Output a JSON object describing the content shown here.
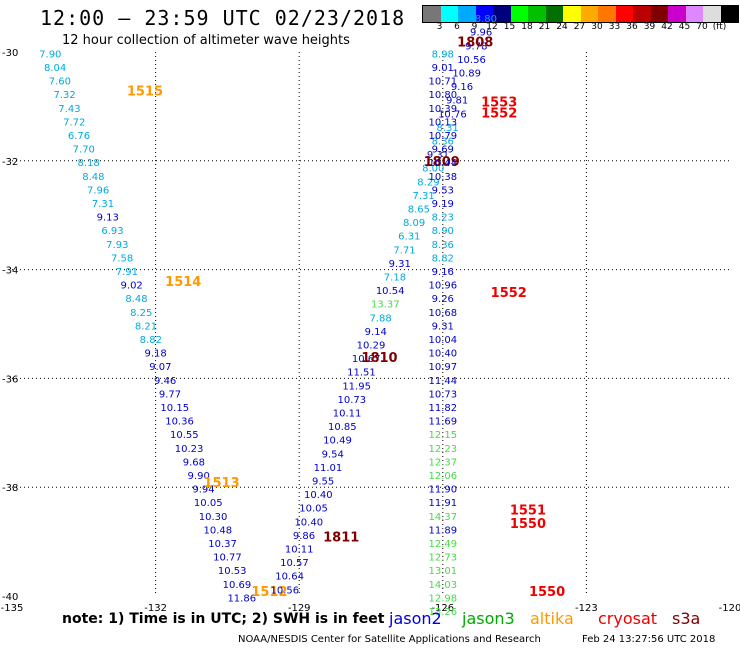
{
  "header": {
    "title": "12:00 – 23:59 UTC 02/23/2018",
    "subtitle": "12 hour collection of altimeter wave heights"
  },
  "legend": {
    "colors": [
      "#777777",
      "#00ffff",
      "#00aaff",
      "#0000ff",
      "#00007f",
      "#00ff00",
      "#00c000",
      "#007000",
      "#ffff00",
      "#ffaa00",
      "#ff7700",
      "#ff0000",
      "#bb0000",
      "#800000",
      "#cc00cc",
      "#dd88ff",
      "#dddddd",
      "#000000"
    ],
    "labels": [
      "3",
      "6",
      "9",
      "12",
      "15",
      "18",
      "21",
      "24",
      "27",
      "30",
      "33",
      "36",
      "39",
      "42",
      "45",
      "70",
      "(ft)"
    ]
  },
  "footer": {
    "note": "note: 1) Time is in UTC; 2) SWH is in feet",
    "satellites": [
      {
        "name": "jason2",
        "color": "#0000dd"
      },
      {
        "name": "jason3",
        "color": "#00aa00"
      },
      {
        "name": "altika",
        "color": "#ff9900"
      },
      {
        "name": "cryosat",
        "color": "#ee0000"
      },
      {
        "name": "s3a",
        "color": "#800000"
      }
    ],
    "credit": "NOAA/NESDIS Center for Satellite Applications and Research",
    "timestamp": "Feb 24 13:27:56 UTC 2018"
  },
  "chart_data": {
    "type": "scatter",
    "title": "12:00 – 23:59 UTC 02/23/2018",
    "subtitle": "12 hour collection of altimeter wave heights",
    "xlim": [
      -135,
      -120
    ],
    "ylim": [
      -40,
      -30
    ],
    "x_ticks": [
      "-135",
      "-132",
      "-129",
      "-126",
      "-123",
      "-120"
    ],
    "y_ticks": [
      "-30",
      "-32",
      "-34",
      "-36",
      "-38",
      "-40"
    ],
    "grid": true,
    "tracks": [
      {
        "name": "altika-west",
        "color_key": "altika",
        "time_labels": [
          {
            "text": "1515",
            "lon": -132.6,
            "lat": -30.8
          },
          {
            "text": "1514",
            "lon": -131.8,
            "lat": -34.3
          },
          {
            "text": "1513",
            "lon": -131.0,
            "lat": -38.0
          },
          {
            "text": "1512",
            "lon": -130.0,
            "lat": -40.0
          }
        ],
        "points": [
          {
            "v": "7.90",
            "lon": -134.2,
            "lat": -30.1
          },
          {
            "v": "8.04",
            "lon": -134.1,
            "lat": -30.35
          },
          {
            "v": "7.60",
            "lon": -134.0,
            "lat": -30.6
          },
          {
            "v": "7.32",
            "lon": -133.9,
            "lat": -30.85
          },
          {
            "v": "7.43",
            "lon": -133.8,
            "lat": -31.1
          },
          {
            "v": "7.72",
            "lon": -133.7,
            "lat": -31.35
          },
          {
            "v": "6.76",
            "lon": -133.6,
            "lat": -31.6
          },
          {
            "v": "7.70",
            "lon": -133.5,
            "lat": -31.85
          },
          {
            "v": "8.18",
            "lon": -133.4,
            "lat": -32.1
          },
          {
            "v": "8.48",
            "lon": -133.3,
            "lat": -32.35
          },
          {
            "v": "7.96",
            "lon": -133.2,
            "lat": -32.6
          },
          {
            "v": "7.31",
            "lon": -133.1,
            "lat": -32.85
          },
          {
            "v": "9.13",
            "lon": -133.0,
            "lat": -33.1
          },
          {
            "v": "6.93",
            "lon": -132.9,
            "lat": -33.35
          },
          {
            "v": "7.93",
            "lon": -132.8,
            "lat": -33.6
          },
          {
            "v": "7.58",
            "lon": -132.7,
            "lat": -33.85
          },
          {
            "v": "7.91",
            "lon": -132.6,
            "lat": -34.1
          },
          {
            "v": "9.02",
            "lon": -132.5,
            "lat": -34.35
          },
          {
            "v": "8.48",
            "lon": -132.4,
            "lat": -34.6
          },
          {
            "v": "8.25",
            "lon": -132.3,
            "lat": -34.85
          },
          {
            "v": "8.21",
            "lon": -132.2,
            "lat": -35.1
          },
          {
            "v": "8.82",
            "lon": -132.1,
            "lat": -35.35
          },
          {
            "v": "9.18",
            "lon": -132.0,
            "lat": -35.6
          },
          {
            "v": "9.07",
            "lon": -131.9,
            "lat": -35.85
          },
          {
            "v": "9.46",
            "lon": -131.8,
            "lat": -36.1
          },
          {
            "v": "9.77",
            "lon": -131.7,
            "lat": -36.35
          },
          {
            "v": "10.15",
            "lon": -131.6,
            "lat": -36.6
          },
          {
            "v": "10.36",
            "lon": -131.5,
            "lat": -36.85
          },
          {
            "v": "10.55",
            "lon": -131.4,
            "lat": -37.1
          },
          {
            "v": "10.23",
            "lon": -131.3,
            "lat": -37.35
          },
          {
            "v": "9.68",
            "lon": -131.2,
            "lat": -37.6
          },
          {
            "v": "9.90",
            "lon": -131.1,
            "lat": -37.85
          },
          {
            "v": "9.94",
            "lon": -131.0,
            "lat": -38.1
          },
          {
            "v": "10.05",
            "lon": -130.9,
            "lat": -38.35
          },
          {
            "v": "10.30",
            "lon": -130.8,
            "lat": -38.6
          },
          {
            "v": "10.48",
            "lon": -130.7,
            "lat": -38.85
          },
          {
            "v": "10.37",
            "lon": -130.6,
            "lat": -39.1
          },
          {
            "v": "10.77",
            "lon": -130.5,
            "lat": -39.35
          },
          {
            "v": "10.53",
            "lon": -130.4,
            "lat": -39.6
          },
          {
            "v": "10.69",
            "lon": -130.3,
            "lat": -39.85
          },
          {
            "v": "11.86",
            "lon": -130.2,
            "lat": -40.1
          }
        ]
      },
      {
        "name": "s3a-middle",
        "color_key": "s3a",
        "time_labels": [
          {
            "text": "1811",
            "lon": -128.5,
            "lat": -39.0
          },
          {
            "text": "1810",
            "lon": -127.7,
            "lat": -35.7
          },
          {
            "text": "1809",
            "lon": -126.4,
            "lat": -32.1
          },
          {
            "text": "1808",
            "lon": -125.7,
            "lat": -29.9
          }
        ],
        "points": [
          {
            "v": "10.56",
            "lon": -129.3,
            "lat": -39.95
          },
          {
            "v": "10.64",
            "lon": -129.2,
            "lat": -39.7
          },
          {
            "v": "10.57",
            "lon": -129.1,
            "lat": -39.45
          },
          {
            "v": "10.11",
            "lon": -129.0,
            "lat": -39.2
          },
          {
            "v": "9.86",
            "lon": -128.9,
            "lat": -38.95
          },
          {
            "v": "10.40",
            "lon": -128.8,
            "lat": -38.7
          },
          {
            "v": "10.05",
            "lon": -128.7,
            "lat": -38.45
          },
          {
            "v": "10.40",
            "lon": -128.6,
            "lat": -38.2
          },
          {
            "v": "9.55",
            "lon": -128.5,
            "lat": -37.95
          },
          {
            "v": "11.01",
            "lon": -128.4,
            "lat": -37.7
          },
          {
            "v": "9.54",
            "lon": -128.3,
            "lat": -37.45
          },
          {
            "v": "10.49",
            "lon": -128.2,
            "lat": -37.2
          },
          {
            "v": "10.85",
            "lon": -128.1,
            "lat": -36.95
          },
          {
            "v": "10.11",
            "lon": -128.0,
            "lat": -36.7
          },
          {
            "v": "10.73",
            "lon": -127.9,
            "lat": -36.45
          },
          {
            "v": "11.95",
            "lon": -127.8,
            "lat": -36.2
          },
          {
            "v": "11.51",
            "lon": -127.7,
            "lat": -35.95
          },
          {
            "v": "10.67",
            "lon": -127.6,
            "lat": -35.7
          },
          {
            "v": "10.29",
            "lon": -127.5,
            "lat": -35.45
          },
          {
            "v": "9.14",
            "lon": -127.4,
            "lat": -35.2
          },
          {
            "v": "7.88",
            "lon": -127.3,
            "lat": -34.95
          },
          {
            "v": "13.37",
            "lon": -127.2,
            "lat": -34.7
          },
          {
            "v": "10.54",
            "lon": -127.1,
            "lat": -34.45
          },
          {
            "v": "7.18",
            "lon": -127.0,
            "lat": -34.2
          },
          {
            "v": "9.31",
            "lon": -126.9,
            "lat": -33.95
          },
          {
            "v": "7.71",
            "lon": -126.8,
            "lat": -33.7
          },
          {
            "v": "6.31",
            "lon": -126.7,
            "lat": -33.45
          },
          {
            "v": "8.09",
            "lon": -126.6,
            "lat": -33.2
          },
          {
            "v": "8.65",
            "lon": -126.5,
            "lat": -32.95
          },
          {
            "v": "7.31",
            "lon": -126.4,
            "lat": -32.7
          },
          {
            "v": "8.29",
            "lon": -126.3,
            "lat": -32.45
          },
          {
            "v": "8.00",
            "lon": -126.2,
            "lat": -32.2
          },
          {
            "v": "9.31",
            "lon": -126.1,
            "lat": -31.95
          },
          {
            "v": "8.36",
            "lon": -126.0,
            "lat": -31.7
          },
          {
            "v": "8.31",
            "lon": -125.9,
            "lat": -31.45
          },
          {
            "v": "10.76",
            "lon": -125.8,
            "lat": -31.2
          },
          {
            "v": "9.81",
            "lon": -125.7,
            "lat": -30.95
          },
          {
            "v": "9.16",
            "lon": -125.6,
            "lat": -30.7
          },
          {
            "v": "10.89",
            "lon": -125.5,
            "lat": -30.45
          },
          {
            "v": "10.56",
            "lon": -125.4,
            "lat": -30.2
          },
          {
            "v": "9.78",
            "lon": -125.3,
            "lat": -29.95
          },
          {
            "v": "9.96",
            "lon": -125.2,
            "lat": -29.7
          },
          {
            "v": "8.80",
            "lon": -125.1,
            "lat": -29.45
          }
        ]
      },
      {
        "name": "cryosat-east",
        "color_key": "cryosat",
        "time_labels": [
          {
            "text": "1553",
            "lon": -125.2,
            "lat": -31.0
          },
          {
            "text": "1552",
            "lon": -125.2,
            "lat": -31.2
          },
          {
            "text": "1552",
            "lon": -125.0,
            "lat": -34.5
          },
          {
            "text": "1551",
            "lon": -124.6,
            "lat": -38.5
          },
          {
            "text": "1550",
            "lon": -124.6,
            "lat": -38.75
          },
          {
            "text": "1550",
            "lon": -124.2,
            "lat": -40.0
          }
        ],
        "points": [
          {
            "v": "8.98",
            "lon": -126.0,
            "lat": -30.1
          },
          {
            "v": "9.01",
            "lon": -126.0,
            "lat": -30.35
          },
          {
            "v": "10.71",
            "lon": -126.0,
            "lat": -30.6
          },
          {
            "v": "10.80",
            "lon": -126.0,
            "lat": -30.85
          },
          {
            "v": "10.39",
            "lon": -126.0,
            "lat": -31.1
          },
          {
            "v": "10.13",
            "lon": -126.0,
            "lat": -31.35
          },
          {
            "v": "10.79",
            "lon": -126.0,
            "lat": -31.6
          },
          {
            "v": "9.69",
            "lon": -126.0,
            "lat": -31.85
          },
          {
            "v": "10.44",
            "lon": -126.0,
            "lat": -32.1
          },
          {
            "v": "10.38",
            "lon": -126.0,
            "lat": -32.35
          },
          {
            "v": "9.53",
            "lon": -126.0,
            "lat": -32.6
          },
          {
            "v": "9.19",
            "lon": -126.0,
            "lat": -32.85
          },
          {
            "v": "8.23",
            "lon": -126.0,
            "lat": -33.1
          },
          {
            "v": "8.90",
            "lon": -126.0,
            "lat": -33.35
          },
          {
            "v": "8.36",
            "lon": -126.0,
            "lat": -33.6
          },
          {
            "v": "8.82",
            "lon": -126.0,
            "lat": -33.85
          },
          {
            "v": "9.16",
            "lon": -126.0,
            "lat": -34.1
          },
          {
            "v": "10.96",
            "lon": -126.0,
            "lat": -34.35
          },
          {
            "v": "9.26",
            "lon": -126.0,
            "lat": -34.6
          },
          {
            "v": "10.68",
            "lon": -126.0,
            "lat": -34.85
          },
          {
            "v": "9.31",
            "lon": -126.0,
            "lat": -35.1
          },
          {
            "v": "10.04",
            "lon": -126.0,
            "lat": -35.35
          },
          {
            "v": "10.40",
            "lon": -126.0,
            "lat": -35.6
          },
          {
            "v": "10.97",
            "lon": -126.0,
            "lat": -35.85
          },
          {
            "v": "11.44",
            "lon": -126.0,
            "lat": -36.1
          },
          {
            "v": "10.73",
            "lon": -126.0,
            "lat": -36.35
          },
          {
            "v": "11.82",
            "lon": -126.0,
            "lat": -36.6
          },
          {
            "v": "11.69",
            "lon": -126.0,
            "lat": -36.85
          },
          {
            "v": "12.15",
            "lon": -126.0,
            "lat": -37.1
          },
          {
            "v": "12.23",
            "lon": -126.0,
            "lat": -37.35
          },
          {
            "v": "12.37",
            "lon": -126.0,
            "lat": -37.6
          },
          {
            "v": "12.06",
            "lon": -126.0,
            "lat": -37.85
          },
          {
            "v": "11.90",
            "lon": -126.0,
            "lat": -38.1
          },
          {
            "v": "11.91",
            "lon": -126.0,
            "lat": -38.35
          },
          {
            "v": "14.37",
            "lon": -126.0,
            "lat": -38.6
          },
          {
            "v": "11.89",
            "lon": -126.0,
            "lat": -38.85
          },
          {
            "v": "12.49",
            "lon": -126.0,
            "lat": -39.1
          },
          {
            "v": "12.73",
            "lon": -126.0,
            "lat": -39.35
          },
          {
            "v": "13.01",
            "lon": -126.0,
            "lat": -39.6
          },
          {
            "v": "14.03",
            "lon": -126.0,
            "lat": -39.85
          },
          {
            "v": "12.98",
            "lon": -126.0,
            "lat": -40.1
          },
          {
            "v": "13.26",
            "lon": -126.0,
            "lat": -40.35
          }
        ]
      }
    ]
  }
}
